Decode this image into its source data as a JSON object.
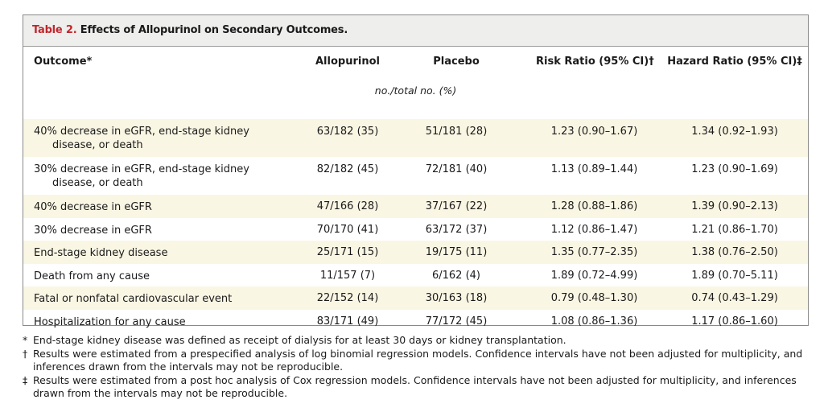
{
  "table": {
    "title_prefix": "Table 2.",
    "title_text": "Effects of Allopurinol on Secondary Outcomes.",
    "headers": {
      "outcome": "Outcome*",
      "allopurinol": "Allopurinol",
      "placebo": "Placebo",
      "risk_ratio": "Risk Ratio (95% CI)†",
      "hazard_ratio": "Hazard Ratio (95% CI)‡"
    },
    "units_label": "no./total no. (%)",
    "rows": [
      {
        "outcome_line1": "40% decrease in eGFR, end-stage kidney",
        "outcome_line2": "disease, or death",
        "allopurinol": "63/182 (35)",
        "placebo": "51/181 (28)",
        "risk_ratio": "1.23 (0.90–1.67)",
        "hazard_ratio": "1.34 (0.92–1.93)"
      },
      {
        "outcome_line1": "30% decrease in eGFR, end-stage kidney",
        "outcome_line2": "disease, or death",
        "allopurinol": "82/182 (45)",
        "placebo": "72/181 (40)",
        "risk_ratio": "1.13 (0.89–1.44)",
        "hazard_ratio": "1.23 (0.90–1.69)"
      },
      {
        "outcome_line1": "40% decrease in eGFR",
        "allopurinol": "47/166 (28)",
        "placebo": "37/167 (22)",
        "risk_ratio": "1.28 (0.88–1.86)",
        "hazard_ratio": "1.39 (0.90–2.13)"
      },
      {
        "outcome_line1": "30% decrease in eGFR",
        "allopurinol": "70/170 (41)",
        "placebo": "63/172 (37)",
        "risk_ratio": "1.12 (0.86–1.47)",
        "hazard_ratio": "1.21 (0.86–1.70)"
      },
      {
        "outcome_line1": "End-stage kidney disease",
        "allopurinol": "25/171 (15)",
        "placebo": "19/175 (11)",
        "risk_ratio": "1.35 (0.77–2.35)",
        "hazard_ratio": "1.38 (0.76–2.50)"
      },
      {
        "outcome_line1": "Death from any cause",
        "allopurinol": "11/157 (7)",
        "placebo": "6/162 (4)",
        "risk_ratio": "1.89 (0.72–4.99)",
        "hazard_ratio": "1.89 (0.70–5.11)"
      },
      {
        "outcome_line1": "Fatal or nonfatal cardiovascular event",
        "allopurinol": "22/152 (14)",
        "placebo": "30/163 (18)",
        "risk_ratio": "0.79 (0.48–1.30)",
        "hazard_ratio": "0.74 (0.43–1.29)"
      },
      {
        "outcome_line1": "Hospitalization for any cause",
        "allopurinol": "83/171 (49)",
        "placebo": "77/172 (45)",
        "risk_ratio": "1.08 (0.86–1.36)",
        "hazard_ratio": "1.17 (0.86–1.60)"
      }
    ]
  },
  "footnotes": [
    {
      "symbol": "*",
      "text": "End-stage kidney disease was defined as receipt of dialysis for at least 30 days or kidney transplantation."
    },
    {
      "symbol": "†",
      "text": "Results were estimated from a prespecified analysis of log binomial regression models. Confidence intervals have not been adjusted for multiplicity, and inferences drawn from the intervals may not be reproducible."
    },
    {
      "symbol": "‡",
      "text": "Results were estimated from a post hoc analysis of Cox regression models. Confidence intervals have not been adjusted for multiplicity, and inferences drawn from the intervals may not be reproducible."
    }
  ],
  "colors": {
    "title_accent": "#c0272d",
    "row_shade": "#faf6e4",
    "title_bg": "#eeeeec"
  }
}
